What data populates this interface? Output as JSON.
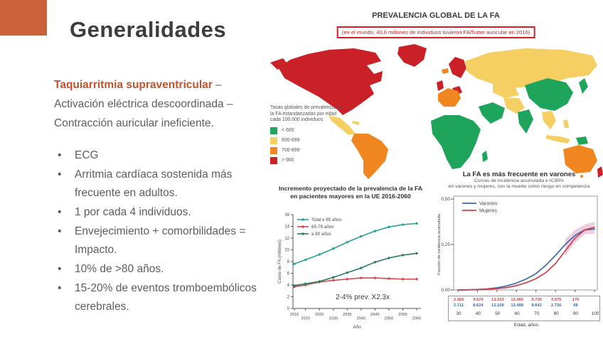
{
  "slide": {
    "title": "Generalidades",
    "accent_color": "#cb613a",
    "highlight_color": "#c05330",
    "lead": {
      "highlight": "Taquiarritmia supraventricular",
      "after_highlight": " –",
      "line2": "Activación eléctrica descoordinada –",
      "line3": "Contracción auricular ineficiente."
    },
    "bullets": [
      "ECG",
      "Arritmia cardíaca sostenida más frecuente en adultos.",
      "1 por cada 4 individuos.",
      "Envejecimiento + comorbilidades = Impacto.",
      "10% de >80 años.",
      "15-20% de eventos tromboembólicos cerebrales."
    ]
  },
  "map": {
    "title": "PREVALENCIA GLOBAL DE LA FA",
    "subtitle": "(en el mundo, 43,6 millones de individuos tuvieron FA/flutter auricular en 2016)",
    "subtitle_box_color": "#d21f26",
    "legend_title": "Tasas globales de prevalencia de la FA estandarizadas por edad cada 100.000 individuos",
    "legend": [
      {
        "key": "green",
        "label": "< 600",
        "color": "#1fa45c"
      },
      {
        "key": "yellow",
        "label": "600-699",
        "color": "#f6cf63"
      },
      {
        "key": "orange",
        "label": "700-899",
        "color": "#f0861f"
      },
      {
        "key": "red",
        "label": "> 900",
        "color": "#c92127"
      }
    ]
  },
  "chart_data": [
    {
      "id": "eu_projection",
      "type": "line",
      "title": "Incremento proyectado de la prevalencia de la FA en pacientes mayores en la UE 2016-2060",
      "xlabel": "Año",
      "ylabel": "Casos de FA (millones)",
      "ylim": [
        0,
        16
      ],
      "yticks": [
        0,
        2,
        4,
        6,
        8,
        10,
        12,
        14,
        16
      ],
      "x": [
        2016,
        2020,
        2025,
        2030,
        2035,
        2040,
        2045,
        2050,
        2055,
        2060
      ],
      "series": [
        {
          "name": "Total ≥ 65 años",
          "color": "#2aa198",
          "values": [
            7.6,
            8.3,
            9.2,
            10.2,
            11.3,
            12.3,
            13.2,
            13.9,
            14.3,
            14.5
          ]
        },
        {
          "name": "65-79 años",
          "color": "#d9444f",
          "values": [
            3.7,
            4.0,
            4.5,
            4.8,
            5.0,
            5.2,
            5.2,
            5.1,
            5.0,
            5.0
          ]
        },
        {
          "name": "≥ 80 años",
          "color": "#2d7d60",
          "values": [
            3.9,
            4.2,
            4.6,
            5.3,
            6.1,
            6.9,
            7.9,
            8.6,
            9.1,
            9.4
          ]
        }
      ],
      "annotation": "2-4% prev. X2.3x",
      "legend_position": "top-left",
      "grid": false
    },
    {
      "id": "incidence",
      "type": "line",
      "title": "La FA es más frecuente en varones",
      "subtitle1": "Curvas de incidencia acumulada e IC95%",
      "subtitle2": "en varones y mujeres, con la muerte como riesgo en competencia",
      "xlabel": "Edad, años",
      "ylabel": "Función de incidencia acumulada",
      "ylim": [
        0,
        0.5
      ],
      "yticks": [
        {
          "v": 0,
          "label": "0,00"
        },
        {
          "v": 0.25,
          "label": "0,25"
        },
        {
          "v": 0.5,
          "label": "0,50"
        }
      ],
      "x_ticks": [
        30,
        40,
        50,
        60,
        70,
        80,
        90,
        100
      ],
      "x": [
        30,
        35,
        40,
        45,
        50,
        55,
        60,
        65,
        70,
        75,
        80,
        85,
        90,
        95,
        100
      ],
      "series": [
        {
          "name": "Varones",
          "color": "#3f68ae",
          "values": [
            0,
            0.001,
            0.003,
            0.006,
            0.012,
            0.022,
            0.038,
            0.06,
            0.09,
            0.135,
            0.19,
            0.25,
            0.3,
            0.33,
            0.335
          ]
        },
        {
          "name": "Mujeres",
          "color": "#d23f48",
          "values": [
            0,
            0.0005,
            0.002,
            0.004,
            0.007,
            0.013,
            0.024,
            0.04,
            0.062,
            0.095,
            0.145,
            0.215,
            0.285,
            0.33,
            0.345
          ]
        }
      ],
      "ci_band_color": "#e0a6c8",
      "at_risk": {
        "rows": [
          {
            "series": "Mujeres",
            "color": "#d23f48",
            "values": [
              "3.165",
              "9.676",
              "13.333",
              "13.465",
              "9.705",
              "3.575",
              "170"
            ]
          },
          {
            "series": "Varones",
            "color": "#3f68ae",
            "values": [
              "2.711",
              "8.624",
              "12.158",
              "12.489",
              "8.642",
              "2.726",
              "68"
            ]
          }
        ],
        "ages": [
          "30",
          "40",
          "50",
          "60",
          "70",
          "80",
          "90",
          "100"
        ]
      },
      "legend_position": "top-left",
      "grid": false
    }
  ]
}
